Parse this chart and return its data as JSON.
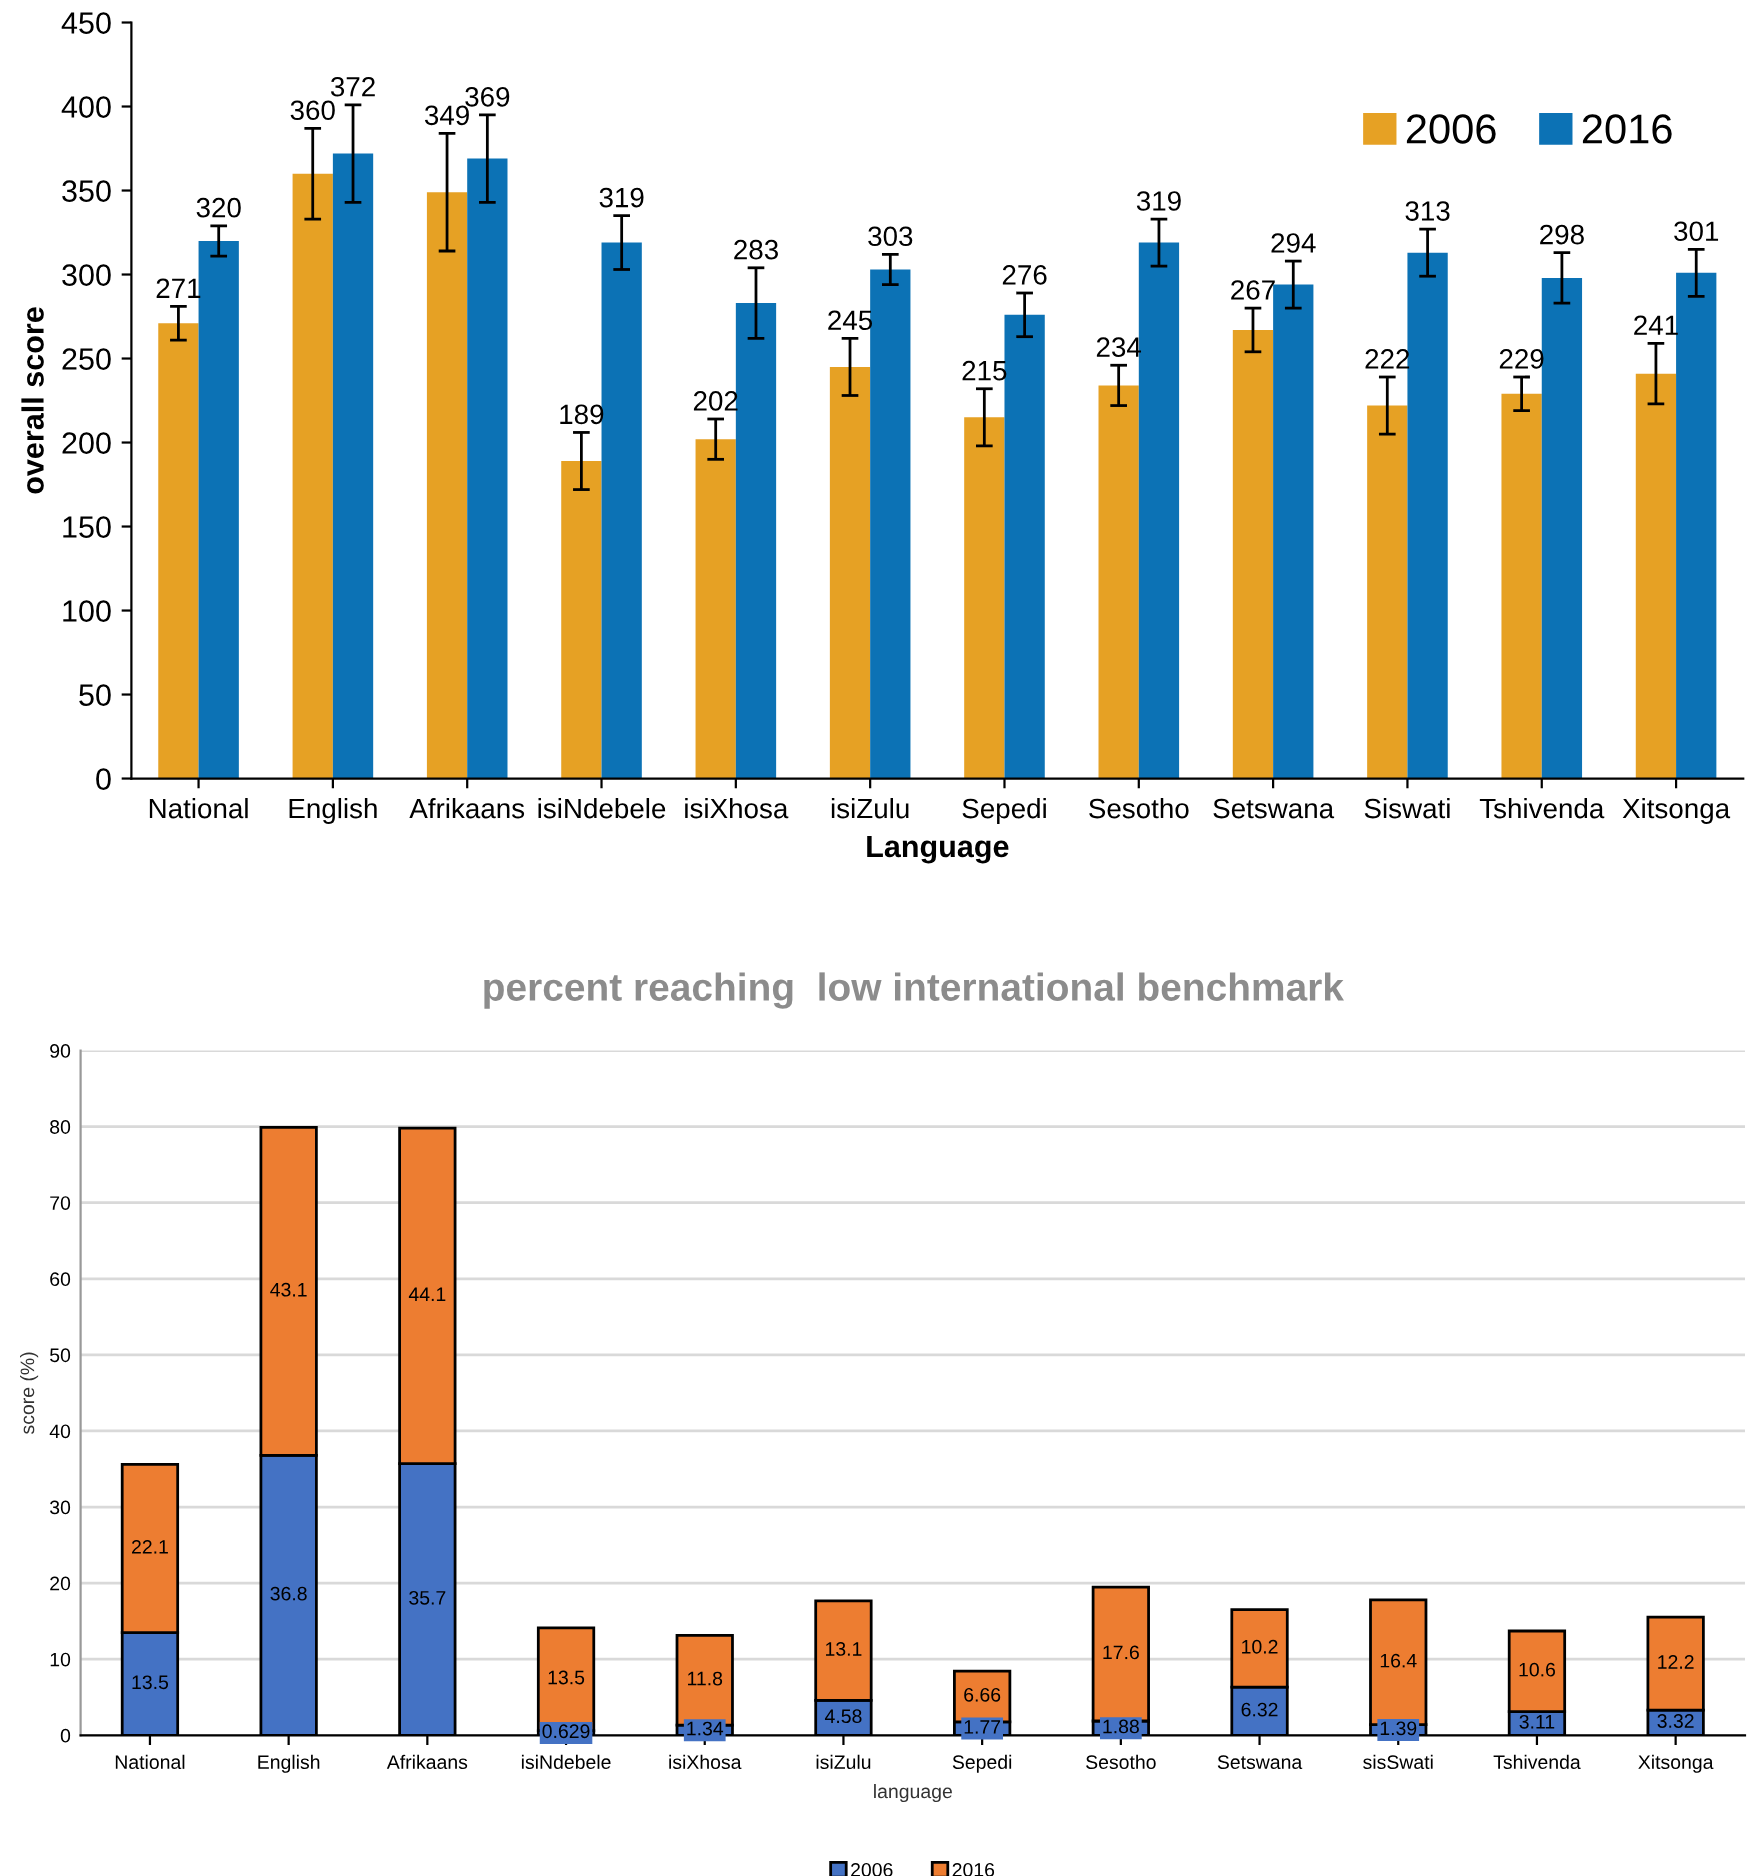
{
  "chart_data": [
    {
      "type": "bar",
      "xlabel": "Language",
      "ylabel": "overall score",
      "categories": [
        "National",
        "English",
        "Afrikaans",
        "isiNdebele",
        "isiXhosa",
        "isiZulu",
        "Sepedi",
        "Sesotho",
        "Setswana",
        "Siswati",
        "Tshivenda",
        "Xitsonga"
      ],
      "series": [
        {
          "name": "2006",
          "color": "#e6a124",
          "values": [
            271,
            360,
            349,
            189,
            202,
            245,
            215,
            234,
            267,
            222,
            229,
            241
          ],
          "errors": [
            10,
            27,
            35,
            17,
            12,
            17,
            17,
            12,
            13,
            17,
            10,
            18
          ]
        },
        {
          "name": "2016",
          "color": "#0c72b5",
          "values": [
            320,
            372,
            369,
            319,
            283,
            303,
            276,
            319,
            294,
            313,
            298,
            301
          ],
          "errors": [
            9,
            29,
            26,
            16,
            21,
            9,
            13,
            14,
            14,
            14,
            15,
            14
          ]
        }
      ],
      "ylim": [
        0,
        450
      ],
      "yticks": [
        0,
        50,
        100,
        150,
        200,
        250,
        300,
        350,
        400,
        450
      ],
      "data_labels": true,
      "legend": "top right",
      "grid": false
    },
    {
      "type": "bar",
      "stacked": true,
      "title": "percent reaching  low international benchmark",
      "xlabel": "language",
      "ylabel": "score (%)",
      "categories": [
        "National",
        "English",
        "Afrikaans",
        "isiNdebele",
        "isiXhosa",
        "isiZulu",
        "Sepedi",
        "Sesotho",
        "Setswana",
        "sisSwati",
        "Tshivenda",
        "Xitsonga"
      ],
      "series": [
        {
          "name": "2006",
          "color": "#4472c4",
          "values": [
            13.5,
            36.8,
            35.7,
            0.629,
            1.34,
            4.58,
            1.77,
            1.88,
            6.32,
            1.39,
            3.11,
            3.32
          ]
        },
        {
          "name": "2016",
          "color": "#ed7d31",
          "values": [
            22.1,
            43.1,
            44.1,
            13.5,
            11.8,
            13.1,
            6.66,
            17.6,
            10.2,
            16.4,
            10.6,
            12.2
          ]
        }
      ],
      "ylim": [
        0,
        90
      ],
      "yticks": [
        0,
        10,
        20,
        30,
        40,
        50,
        60,
        70,
        80,
        90
      ],
      "data_labels": true,
      "legend": "bottom",
      "grid": "y"
    }
  ]
}
